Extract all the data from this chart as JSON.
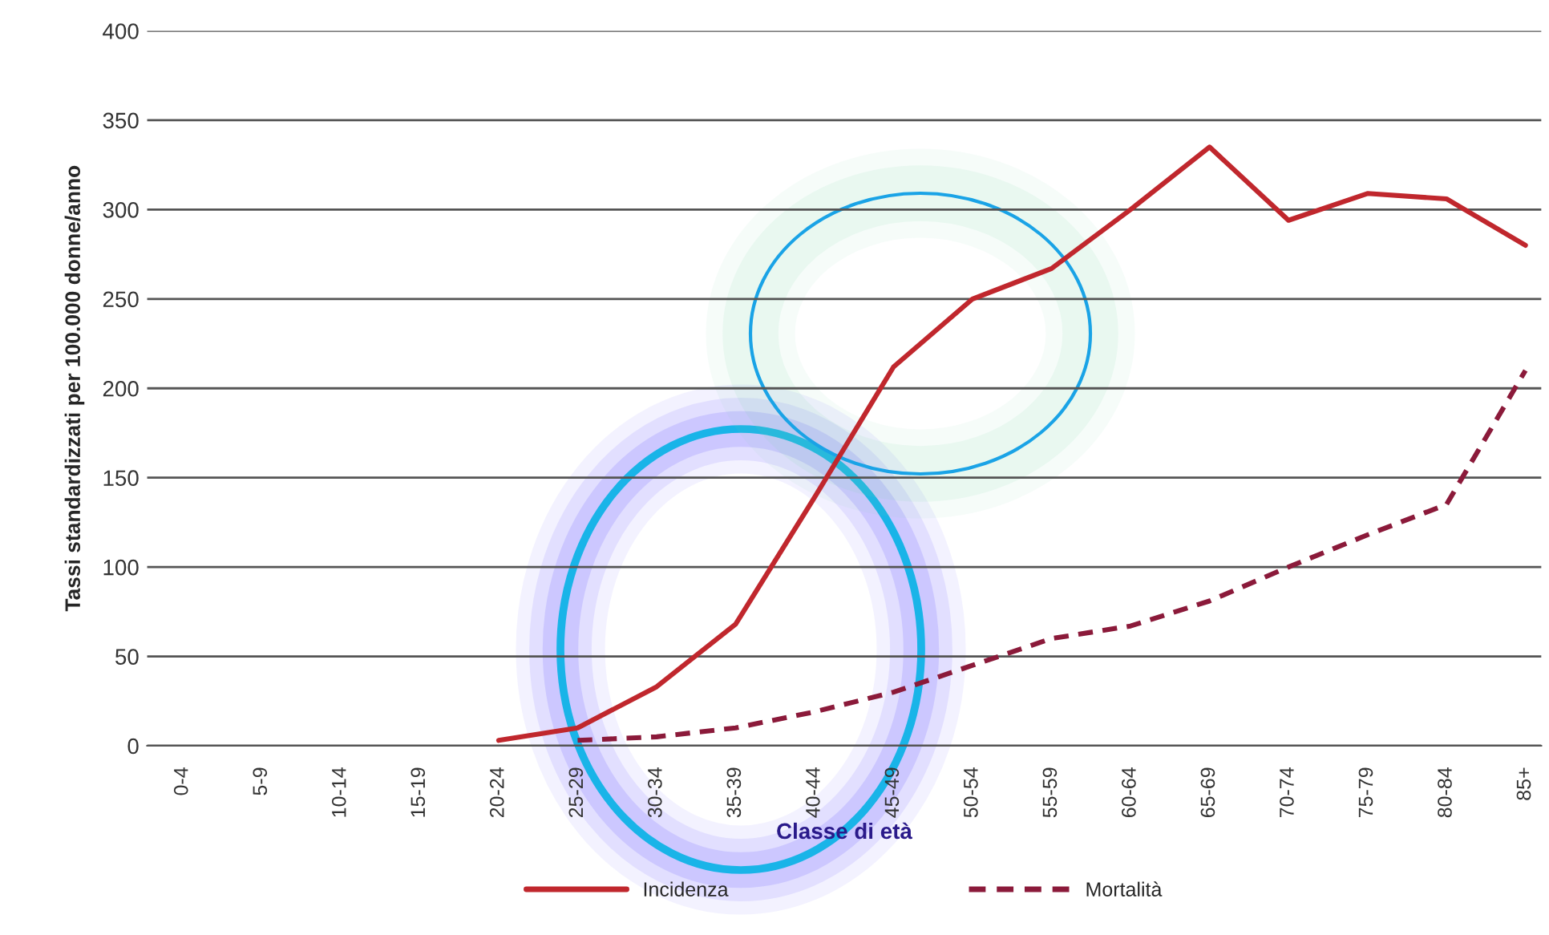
{
  "chart_data": {
    "type": "line",
    "xlabel": "Classe di età",
    "ylabel": "Tassi standardizzati per 100.000 donne/anno",
    "categories": [
      "0-4",
      "5-9",
      "10-14",
      "15-19",
      "20-24",
      "25-29",
      "30-34",
      "35-39",
      "40-44",
      "45-49",
      "50-54",
      "55-59",
      "60-64",
      "65-69",
      "70-74",
      "75-79",
      "80-84",
      "85+"
    ],
    "series": [
      {
        "name": "Incidenza",
        "color": "#c0272d",
        "line_style": "solid",
        "values": [
          null,
          null,
          null,
          null,
          3,
          10,
          33,
          68,
          139,
          212,
          250,
          267,
          300,
          335,
          294,
          309,
          306,
          280
        ]
      },
      {
        "name": "Mortalità",
        "color": "#8b1a3a",
        "line_style": "dashed",
        "values": [
          null,
          null,
          null,
          null,
          null,
          3,
          5,
          10,
          19,
          30,
          45,
          60,
          67,
          81,
          100,
          118,
          135,
          210
        ]
      }
    ],
    "ylim": [
      0,
      400
    ],
    "yticks": [
      0,
      50,
      100,
      150,
      200,
      250,
      300,
      350,
      400
    ],
    "grid": "y",
    "legend": "bottom",
    "marker": "none"
  }
}
